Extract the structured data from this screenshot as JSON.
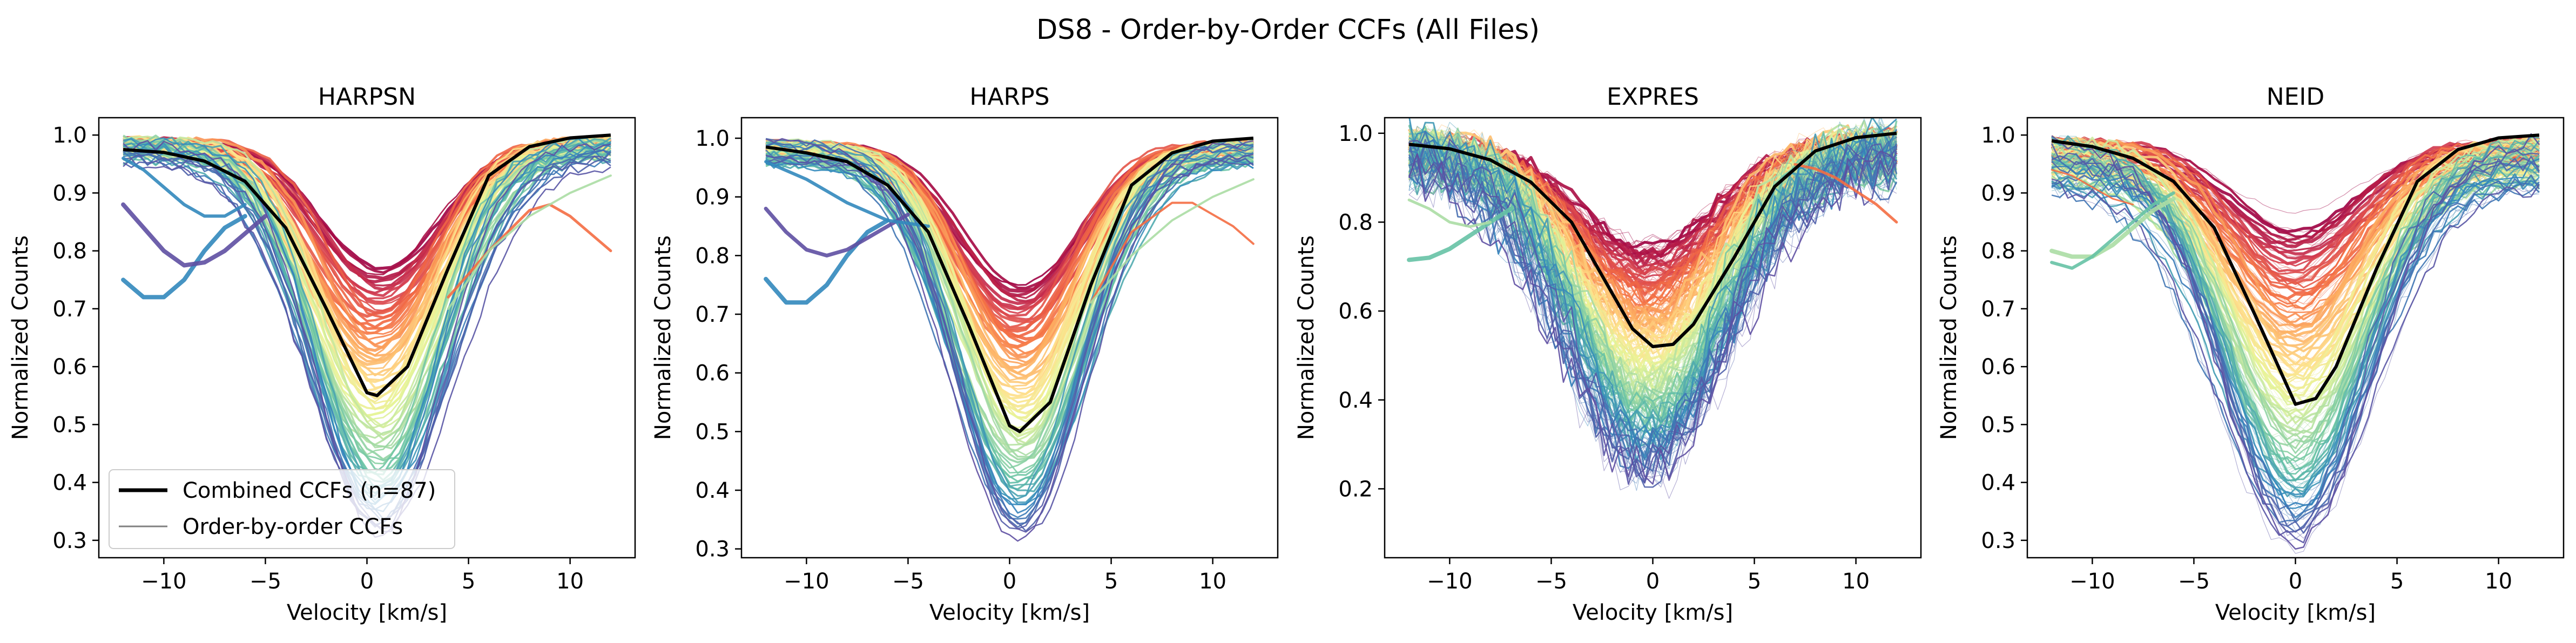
{
  "figure_title": "DS8 - Order-by-Order CCFs (All Files)",
  "legend": {
    "combined_label": "Combined CCFs (n=87)",
    "order_label": "Order-by-order CCFs"
  },
  "colors": {
    "combined": "#000000",
    "order_legend": "#808080",
    "palette": [
      "#9e0142",
      "#d53e4f",
      "#f46d43",
      "#fdae61",
      "#fee08b",
      "#e6f598",
      "#abdda4",
      "#66c2a5",
      "#3288bd",
      "#5e4fa2"
    ]
  },
  "chart_data": [
    {
      "type": "line",
      "title": "HARPSN",
      "xlabel": "Velocity [km/s]",
      "ylabel": "Normalized Counts",
      "xlim": [
        -13.2,
        13.2
      ],
      "ylim": [
        0.27,
        1.03
      ],
      "xticks": [
        -10,
        -5,
        0,
        5,
        10
      ],
      "yticks": [
        0.3,
        0.4,
        0.5,
        0.6,
        0.7,
        0.8,
        0.9,
        1.0
      ],
      "ytick_labels": [
        "0.3",
        "0.4",
        "0.5",
        "0.6",
        "0.7",
        "0.8",
        "0.9",
        "1.0"
      ],
      "combined": {
        "x": [
          -12,
          -10,
          -8,
          -6,
          -4,
          -2,
          0,
          0.5,
          2,
          4,
          6,
          8,
          10,
          12
        ],
        "y": [
          0.975,
          0.97,
          0.955,
          0.92,
          0.84,
          0.7,
          0.555,
          0.55,
          0.6,
          0.77,
          0.93,
          0.98,
          0.995,
          1.0
        ]
      },
      "orders": {
        "n": 80,
        "center": 0.5,
        "width_min": 2.6,
        "width_max": 3.6,
        "min_depth": 0.77,
        "max_depth": 0.31,
        "base_hi": 0.995,
        "base_lo": 0.95,
        "noise": 0.005,
        "copies": 1,
        "oddities": [
          {
            "x": [
              -12,
              -11,
              -10,
              -9,
              -8,
              -7,
              -6
            ],
            "y": [
              0.75,
              0.72,
              0.72,
              0.75,
              0.8,
              0.84,
              0.86
            ],
            "color": "#3288bd",
            "width": 8
          },
          {
            "x": [
              -12,
              -11,
              -10,
              -9,
              -8,
              -7,
              -6,
              -5
            ],
            "y": [
              0.88,
              0.84,
              0.8,
              0.775,
              0.78,
              0.8,
              0.83,
              0.86
            ],
            "color": "#5e4fa2",
            "width": 8
          },
          {
            "x": [
              -12,
              -11,
              -10,
              -9,
              -8,
              -7,
              -6
            ],
            "y": [
              0.96,
              0.94,
              0.91,
              0.88,
              0.86,
              0.86,
              0.88
            ],
            "color": "#3288bd",
            "width": 6
          },
          {
            "x": [
              4,
              6,
              8,
              9,
              10,
              11,
              12
            ],
            "y": [
              0.72,
              0.8,
              0.87,
              0.88,
              0.86,
              0.83,
              0.8
            ],
            "color": "#f46d43",
            "width": 5
          },
          {
            "x": [
              4,
              6,
              8,
              10,
              12
            ],
            "y": [
              0.7,
              0.8,
              0.86,
              0.9,
              0.93
            ],
            "color": "#abdda4",
            "width": 4
          }
        ]
      }
    },
    {
      "type": "line",
      "title": "HARPS",
      "xlabel": "Velocity [km/s]",
      "ylabel": "Normalized Counts",
      "xlim": [
        -13.2,
        13.2
      ],
      "ylim": [
        0.285,
        1.035
      ],
      "xticks": [
        -10,
        -5,
        0,
        5,
        10
      ],
      "yticks": [
        0.3,
        0.4,
        0.5,
        0.6,
        0.7,
        0.8,
        0.9,
        1.0
      ],
      "ytick_labels": [
        "0.3",
        "0.4",
        "0.5",
        "0.6",
        "0.7",
        "0.8",
        "0.9",
        "1.0"
      ],
      "combined": {
        "x": [
          -12,
          -10,
          -8,
          -6,
          -4,
          -2,
          0,
          0.5,
          2,
          4,
          6,
          8,
          10,
          12
        ],
        "y": [
          0.985,
          0.975,
          0.96,
          0.92,
          0.84,
          0.68,
          0.51,
          0.5,
          0.55,
          0.75,
          0.92,
          0.975,
          0.995,
          1.0
        ]
      },
      "orders": {
        "n": 80,
        "center": 0.5,
        "width_min": 2.6,
        "width_max": 3.5,
        "min_depth": 0.75,
        "max_depth": 0.32,
        "base_hi": 0.995,
        "base_lo": 0.95,
        "noise": 0.004,
        "copies": 1,
        "oddities": [
          {
            "x": [
              -12,
              -11,
              -10,
              -9,
              -8,
              -7,
              -6
            ],
            "y": [
              0.76,
              0.72,
              0.72,
              0.75,
              0.8,
              0.84,
              0.86
            ],
            "color": "#3288bd",
            "width": 8
          },
          {
            "x": [
              -12,
              -11,
              -10,
              -9,
              -8,
              -7,
              -6,
              -5
            ],
            "y": [
              0.88,
              0.84,
              0.81,
              0.8,
              0.81,
              0.83,
              0.85,
              0.87
            ],
            "color": "#5e4fa2",
            "width": 7
          },
          {
            "x": [
              -12,
              -10,
              -8,
              -6,
              -4
            ],
            "y": [
              0.96,
              0.93,
              0.89,
              0.86,
              0.85
            ],
            "color": "#3288bd",
            "width": 6
          },
          {
            "x": [
              4,
              6,
              8,
              9,
              10,
              11,
              12
            ],
            "y": [
              0.72,
              0.84,
              0.89,
              0.89,
              0.87,
              0.85,
              0.82
            ],
            "color": "#f46d43",
            "width": 4
          },
          {
            "x": [
              4,
              6,
              8,
              10,
              12
            ],
            "y": [
              0.72,
              0.8,
              0.86,
              0.9,
              0.93
            ],
            "color": "#abdda4",
            "width": 4
          }
        ]
      }
    },
    {
      "type": "line",
      "title": "EXPRES",
      "xlabel": "Velocity [km/s]",
      "ylabel": "Normalized Counts",
      "xlim": [
        -13.2,
        13.2
      ],
      "ylim": [
        0.045,
        1.035
      ],
      "xticks": [
        -10,
        -5,
        0,
        5,
        10
      ],
      "yticks": [
        0.2,
        0.4,
        0.6,
        0.8,
        1.0
      ],
      "ytick_labels": [
        "0.2",
        "0.4",
        "0.6",
        "0.8",
        "1.0"
      ],
      "combined": {
        "x": [
          -12,
          -10,
          -8,
          -6,
          -4,
          -2,
          -1,
          0,
          1,
          2,
          4,
          6,
          8,
          10,
          12
        ],
        "y": [
          0.975,
          0.965,
          0.94,
          0.89,
          0.8,
          0.64,
          0.56,
          0.52,
          0.525,
          0.57,
          0.72,
          0.88,
          0.96,
          0.99,
          1.0
        ]
      },
      "orders": {
        "n": 85,
        "center": -0.3,
        "width_min": 3.0,
        "width_max": 4.2,
        "min_depth": 0.74,
        "max_depth": 0.24,
        "base_hi": 0.995,
        "base_lo": 0.9,
        "noise": 0.03,
        "copies": 3,
        "oddities": [
          {
            "x": [
              -12,
              -11,
              -10,
              -9,
              -8,
              -7
            ],
            "y": [
              0.715,
              0.72,
              0.74,
              0.77,
              0.8,
              0.83
            ],
            "color": "#66c2a5",
            "width": 8
          },
          {
            "x": [
              -12,
              -11,
              -10,
              -9,
              -8
            ],
            "y": [
              0.85,
              0.83,
              0.8,
              0.79,
              0.8
            ],
            "color": "#abdda4",
            "width": 5
          },
          {
            "x": [
              7,
              8,
              9,
              10,
              11,
              12
            ],
            "y": [
              0.93,
              0.92,
              0.9,
              0.87,
              0.84,
              0.8
            ],
            "color": "#f46d43",
            "width": 5
          }
        ]
      }
    },
    {
      "type": "line",
      "title": "NEID",
      "xlabel": "Velocity [km/s]",
      "ylabel": "Normalized Counts",
      "xlim": [
        -13.2,
        13.2
      ],
      "ylim": [
        0.27,
        1.03
      ],
      "xticks": [
        -10,
        -5,
        0,
        5,
        10
      ],
      "yticks": [
        0.3,
        0.4,
        0.5,
        0.6,
        0.7,
        0.8,
        0.9,
        1.0
      ],
      "ytick_labels": [
        "0.3",
        "0.4",
        "0.5",
        "0.6",
        "0.7",
        "0.8",
        "0.9",
        "1.0"
      ],
      "combined": {
        "x": [
          -12,
          -10,
          -8,
          -6,
          -4,
          -2,
          0,
          1,
          2,
          4,
          6,
          8,
          10,
          12
        ],
        "y": [
          0.99,
          0.98,
          0.96,
          0.92,
          0.84,
          0.69,
          0.535,
          0.545,
          0.6,
          0.77,
          0.92,
          0.975,
          0.995,
          1.0
        ]
      },
      "orders": {
        "n": 80,
        "center": 0,
        "width_min": 2.8,
        "width_max": 3.9,
        "min_depth": 0.835,
        "max_depth": 0.3,
        "base_hi": 0.995,
        "base_lo": 0.9,
        "noise": 0.008,
        "copies": 2,
        "oddities": [
          {
            "x": [
              -12,
              -11,
              -10,
              -9,
              -8,
              -7,
              -6
            ],
            "y": [
              0.8,
              0.79,
              0.79,
              0.81,
              0.84,
              0.87,
              0.89
            ],
            "color": "#abdda4",
            "width": 8
          },
          {
            "x": [
              -12,
              -11,
              -10,
              -9,
              -8,
              -7,
              -6
            ],
            "y": [
              0.78,
              0.77,
              0.79,
              0.82,
              0.85,
              0.88,
              0.9
            ],
            "color": "#66c2a5",
            "width": 6
          },
          {
            "x": [
              -12,
              -11,
              -10,
              -9,
              -8
            ],
            "y": [
              0.94,
              0.93,
              0.91,
              0.89,
              0.88
            ],
            "color": "#f46d43",
            "width": 3
          }
        ]
      }
    }
  ]
}
